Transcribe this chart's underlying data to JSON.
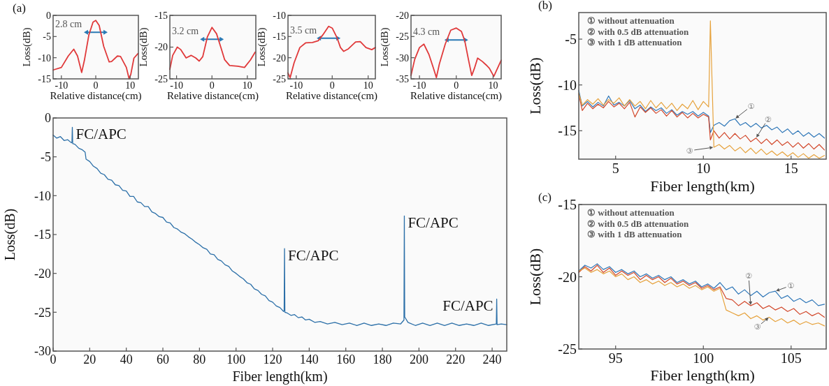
{
  "chart_data": [
    {
      "type": "line",
      "title": "(a)",
      "xlabel": "Relative distance(cm)",
      "ylabel": "Loss(dB)",
      "xlim": [
        -12.4,
        12.4
      ],
      "ylim": [
        -15,
        0
      ],
      "xticks": [
        -10,
        0,
        10
      ],
      "yticks": [
        0,
        -5,
        -10,
        -15
      ],
      "series": [
        {
          "color": "#e0393a",
          "x": [
            -12.4,
            -10,
            -8.0,
            -6.4,
            -5.3,
            -4.1,
            -3.3,
            -2.0,
            -0.8,
            0,
            1.0,
            2.3,
            3.9,
            4.6,
            6.3,
            7.2,
            8.9,
            9.7,
            10.2,
            11.1,
            12.3
          ],
          "values": [
            -12.9,
            -12.3,
            -9.6,
            -8.0,
            -9.6,
            -13.5,
            -10.6,
            -4.6,
            -1.6,
            -1.2,
            -2.4,
            -7.3,
            -11.0,
            -10.9,
            -9.6,
            -9.7,
            -12.3,
            -15,
            -13.9,
            -10.1,
            -9.0
          ]
        }
      ],
      "annotations": [
        "2.8 cm"
      ]
    },
    {
      "type": "line",
      "xlabel": "Relative distance(cm)",
      "ylabel": "Loss(dB)",
      "xlim": [
        -11.9,
        12.4
      ],
      "ylim": [
        -25,
        -15
      ],
      "xticks": [
        -10,
        0,
        10
      ],
      "yticks": [
        -15,
        -20,
        -25
      ],
      "series": [
        {
          "color": "#e0393a",
          "x": [
            -11.9,
            -11.1,
            -9.8,
            -8.8,
            -7.3,
            -5.9,
            -4.6,
            -3.6,
            -2.6,
            -1.3,
            0,
            1.3,
            2.6,
            3.6,
            5.0,
            7.3,
            9.2,
            10.9,
            12.2
          ],
          "values": [
            -23.5,
            -21.3,
            -20.0,
            -20.4,
            -21.7,
            -21.3,
            -21.7,
            -22.2,
            -21.5,
            -18.4,
            -16.9,
            -17.9,
            -20.2,
            -22.0,
            -22.9,
            -23.0,
            -23.2,
            -22.0,
            -20.8
          ]
        }
      ],
      "annotations": [
        "3.2 cm"
      ]
    },
    {
      "type": "line",
      "xlabel": "Relative distance(cm)",
      "ylabel": "Loss(dB)",
      "xlim": [
        -12.3,
        12.0
      ],
      "ylim": [
        -25,
        -10
      ],
      "xticks": [
        -10,
        0,
        10
      ],
      "yticks": [
        -10,
        -15,
        -20,
        -25
      ],
      "series": [
        {
          "color": "#e0393a",
          "x": [
            -12.3,
            -11.7,
            -10.6,
            -9.0,
            -7.4,
            -5.5,
            -3.9,
            -2.6,
            -1.0,
            0,
            1.3,
            2.3,
            3.2,
            4.5,
            6.5,
            7.8,
            9.4,
            11.0,
            12.0
          ],
          "values": [
            -23.6,
            -24.7,
            -21.2,
            -17.6,
            -16.5,
            -16.4,
            -16.0,
            -14.6,
            -12.6,
            -13.0,
            -15.2,
            -17.6,
            -18.5,
            -17.9,
            -16.3,
            -16.2,
            -17.6,
            -18.1,
            -17.6
          ]
        }
      ],
      "annotations": [
        "3.5 cm"
      ]
    },
    {
      "type": "line",
      "xlabel": "Relative distance(cm)",
      "ylabel": "Loss(dB)",
      "xlim": [
        -12.3,
        12.2
      ],
      "ylim": [
        -35,
        -20
      ],
      "xticks": [
        -10,
        0,
        10
      ],
      "yticks": [
        -20,
        -25,
        -30,
        -35
      ],
      "series": [
        {
          "color": "#e0393a",
          "x": [
            -12.3,
            -11.3,
            -10.0,
            -8.8,
            -7.4,
            -6.2,
            -5.4,
            -4.6,
            -3.0,
            -1.5,
            0,
            1.4,
            2.3,
            3.3,
            4.2,
            4.9,
            5.8,
            7.1,
            8.1,
            9.0,
            10.2,
            11.2,
            12.2
          ],
          "values": [
            -34.2,
            -30.4,
            -27.6,
            -26.8,
            -29.3,
            -32.5,
            -34.7,
            -31.5,
            -26.8,
            -23.5,
            -23.0,
            -23.8,
            -26.0,
            -30.4,
            -34.2,
            -32.6,
            -30.1,
            -30.9,
            -31.7,
            -32.5,
            -34.4,
            -32.5,
            -30.6
          ]
        }
      ],
      "annotations": [
        "4.3 cm"
      ]
    },
    {
      "type": "line",
      "xlabel": "Fiber length(km)",
      "ylabel": "Loss(dB)",
      "xlim": [
        0,
        248
      ],
      "ylim": [
        -30,
        0
      ],
      "xticks": [
        0,
        20,
        40,
        60,
        80,
        100,
        120,
        140,
        160,
        180,
        200,
        220,
        240
      ],
      "yticks": [
        0,
        -5,
        -10,
        -15,
        -20,
        -25,
        -30
      ],
      "series": [
        {
          "color": "#2b6fa8",
          "x": [
            0,
            2,
            4,
            6,
            8,
            10,
            10.3,
            10.5,
            10.7,
            12,
            14,
            16,
            17.5,
            18,
            20,
            22,
            24,
            26,
            28,
            30,
            32,
            34,
            36,
            38,
            40,
            42,
            44,
            46,
            48,
            50,
            52,
            54,
            56,
            58,
            60,
            62,
            64,
            66,
            68,
            70,
            72,
            74,
            76,
            78,
            80,
            82,
            84,
            86,
            88,
            90,
            92,
            94,
            96,
            98,
            100,
            102,
            104,
            106,
            108,
            110,
            112,
            114,
            116,
            118,
            120,
            122,
            124,
            126,
            126.3,
            126.5,
            126.7,
            128,
            130,
            132,
            134,
            136,
            138,
            140,
            143,
            146,
            150,
            154,
            158,
            162,
            166,
            170,
            174,
            178,
            182,
            186,
            190,
            191.8,
            192,
            192.2,
            194,
            198,
            202,
            206,
            210,
            214,
            218,
            222,
            226,
            230,
            234,
            238,
            242.3,
            242.5,
            242.7,
            245,
            248
          ],
          "values": [
            -2.2,
            -2.6,
            -2.4,
            -2.9,
            -2.8,
            -3.2,
            -3.1,
            -1.2,
            -3.3,
            -3.4,
            -3.9,
            -4.1,
            -4.4,
            -5.3,
            -5.6,
            -6.2,
            -6.5,
            -7.1,
            -7.3,
            -7.9,
            -8.0,
            -8.6,
            -8.7,
            -9.3,
            -9.4,
            -10.1,
            -10.1,
            -10.8,
            -10.9,
            -11.4,
            -11.4,
            -12.1,
            -12.3,
            -12.7,
            -12.8,
            -13.4,
            -13.5,
            -14.1,
            -14.3,
            -14.7,
            -14.9,
            -15.3,
            -15.6,
            -16.0,
            -16.3,
            -16.7,
            -16.9,
            -17.5,
            -17.6,
            -18.2,
            -18.4,
            -18.9,
            -19.1,
            -19.7,
            -20.0,
            -20.4,
            -20.7,
            -21.2,
            -21.4,
            -22.0,
            -22.2,
            -22.7,
            -22.9,
            -23.5,
            -23.7,
            -24.2,
            -24.4,
            -24.9,
            -24.8,
            -16.8,
            -25.0,
            -25.1,
            -25.4,
            -25.3,
            -25.7,
            -25.6,
            -26.0,
            -25.9,
            -26.3,
            -26.2,
            -26.5,
            -26.3,
            -26.6,
            -26.4,
            -26.7,
            -26.4,
            -26.7,
            -26.5,
            -26.7,
            -26.4,
            -26.5,
            -26.0,
            -12.6,
            -25.6,
            -26.3,
            -26.7,
            -26.4,
            -26.7,
            -26.4,
            -26.7,
            -26.4,
            -26.7,
            -26.5,
            -26.7,
            -26.4,
            -26.7,
            -26.5,
            -23.3,
            -26.6,
            -26.5,
            -26.6
          ]
        }
      ],
      "annotations": [
        {
          "text": "FC/APC",
          "x": 10.5,
          "y": -1.2
        },
        {
          "text": "FC/APC",
          "x": 126.5,
          "y": -16.8
        },
        {
          "text": "FC/APC",
          "x": 192,
          "y": -12.6
        },
        {
          "text": "FC/APC",
          "x": 242.5,
          "y": -23.3
        }
      ]
    },
    {
      "type": "line",
      "title": "(b)",
      "xlabel": "Fiber length(km)",
      "ylabel": "Loss(dB)",
      "xlim": [
        2.9,
        17.0
      ],
      "ylim": [
        -18.1,
        -2.1
      ],
      "xticks": [
        5,
        10,
        15
      ],
      "yticks": [
        -5,
        -10,
        -15
      ],
      "x": [
        2.9,
        3.1,
        3.4,
        3.7,
        4.0,
        4.3,
        4.6,
        4.9,
        5.2,
        5.5,
        5.8,
        6.1,
        6.4,
        6.7,
        7.0,
        7.3,
        7.6,
        7.9,
        8.2,
        8.5,
        8.8,
        9.1,
        9.4,
        9.7,
        10.0,
        10.3,
        10.4,
        10.6,
        10.9,
        11.2,
        11.5,
        11.8,
        12.1,
        12.4,
        12.7,
        13.0,
        13.3,
        13.6,
        13.9,
        14.2,
        14.5,
        14.8,
        15.1,
        15.4,
        15.7,
        16.0,
        16.3,
        16.6,
        16.9
      ],
      "series": [
        {
          "color": "#2f77b8",
          "values": [
            -10.6,
            -12.3,
            -11.8,
            -12.4,
            -11.9,
            -12.3,
            -11.2,
            -12.2,
            -11.9,
            -12.3,
            -11.7,
            -12.6,
            -12.2,
            -12.9,
            -12.4,
            -12.8,
            -12.5,
            -13.1,
            -12.7,
            -13.3,
            -12.9,
            -13.2,
            -12.9,
            -13.4,
            -13.0,
            -13.4,
            -15.2,
            -14.4,
            -14.1,
            -14.5,
            -13.9,
            -13.7,
            -14.4,
            -14.1,
            -14.6,
            -14.2,
            -14.7,
            -14.4,
            -14.9,
            -14.6,
            -15.2,
            -14.8,
            -15.4,
            -15.0,
            -15.6,
            -15.2,
            -15.7,
            -15.3,
            -15.8
          ]
        },
        {
          "color": "#d2472a",
          "values": [
            -11.0,
            -12.8,
            -12.0,
            -12.6,
            -12.1,
            -12.5,
            -11.8,
            -12.4,
            -12.0,
            -12.6,
            -11.9,
            -13.5,
            -12.4,
            -13.0,
            -12.5,
            -13.1,
            -12.7,
            -13.4,
            -12.8,
            -13.5,
            -13.0,
            -13.6,
            -13.1,
            -13.6,
            -13.2,
            -13.5,
            -16.0,
            -15.0,
            -15.8,
            -15.2,
            -15.9,
            -15.3,
            -15.9,
            -15.5,
            -16.2,
            -15.8,
            -16.4,
            -15.9,
            -16.5,
            -16.0,
            -16.6,
            -16.2,
            -16.8,
            -16.3,
            -16.9,
            -16.4,
            -17.0,
            -16.5,
            -17.1
          ]
        },
        {
          "color": "#e6a23c",
          "values": [
            -10.9,
            -12.2,
            -11.6,
            -12.1,
            -11.5,
            -12.2,
            -11.6,
            -12.0,
            -11.4,
            -12.3,
            -11.6,
            -12.3,
            -11.8,
            -12.6,
            -11.7,
            -12.5,
            -11.9,
            -12.6,
            -12.0,
            -12.8,
            -12.1,
            -12.6,
            -11.7,
            -12.7,
            -11.8,
            -12.4,
            -3.0,
            -16.8,
            -16.5,
            -17.0,
            -16.6,
            -17.2,
            -16.8,
            -17.4,
            -16.9,
            -17.5,
            -17.0,
            -17.6,
            -17.2,
            -17.7,
            -17.3,
            -17.8,
            -17.4,
            -17.9,
            -17.5,
            -18.0,
            -17.6,
            -18.0,
            -17.7
          ]
        }
      ],
      "annotations": [
        "① without attenuation",
        "② with 0.5 dB attenuation",
        "③ with 1 dB attenuation",
        {
          "text": "①",
          "x": 11.8,
          "y": -13.7
        },
        {
          "text": "②",
          "x": 13.0,
          "y": -15.8
        },
        {
          "text": "③",
          "x": 10.6,
          "y": -16.8
        }
      ]
    },
    {
      "type": "line",
      "title": "(c)",
      "xlabel": "Fiber length(km)",
      "ylabel": "Loss(dB)",
      "xlim": [
        92.9,
        107.0
      ],
      "ylim": [
        -25,
        -15
      ],
      "xticks": [
        95,
        100,
        105
      ],
      "yticks": [
        -15,
        -20,
        -25
      ],
      "x": [
        92.9,
        93.25,
        93.6,
        93.95,
        94.3,
        94.65,
        95.0,
        95.35,
        95.7,
        96.05,
        96.4,
        96.75,
        97.1,
        97.45,
        97.8,
        98.15,
        98.5,
        98.85,
        99.2,
        99.55,
        99.9,
        100.25,
        100.6,
        100.95,
        101.3,
        101.65,
        102.0,
        102.35,
        102.7,
        103.05,
        103.4,
        103.75,
        104.1,
        104.45,
        104.8,
        105.15,
        105.5,
        105.85,
        106.2,
        106.55,
        106.9
      ],
      "series": [
        {
          "color": "#2f77b8",
          "values": [
            -19.6,
            -19.2,
            -19.4,
            -19.1,
            -19.5,
            -19.3,
            -19.7,
            -19.5,
            -19.8,
            -19.6,
            -20.0,
            -19.8,
            -20.1,
            -19.9,
            -20.2,
            -20.0,
            -20.4,
            -20.2,
            -20.5,
            -20.3,
            -20.7,
            -20.5,
            -20.8,
            -20.4,
            -20.9,
            -20.7,
            -21.2,
            -20.9,
            -21.3,
            -21.0,
            -21.4,
            -21.1,
            -21.0,
            -21.5,
            -21.3,
            -21.7,
            -21.5,
            -21.8,
            -21.6,
            -22.0,
            -21.9
          ]
        },
        {
          "color": "#d2472a",
          "values": [
            -19.7,
            -19.3,
            -19.6,
            -19.2,
            -19.7,
            -19.4,
            -19.9,
            -19.6,
            -19.9,
            -19.7,
            -20.2,
            -19.9,
            -20.2,
            -20.0,
            -20.4,
            -20.1,
            -20.5,
            -20.3,
            -20.6,
            -20.4,
            -20.8,
            -20.6,
            -20.9,
            -20.7,
            -21.5,
            -21.6,
            -22.0,
            -21.7,
            -22.0,
            -21.8,
            -22.2,
            -22.0,
            -22.3,
            -22.1,
            -22.4,
            -22.2,
            -22.6,
            -22.4,
            -22.7,
            -22.5,
            -22.8
          ]
        },
        {
          "color": "#e6a23c",
          "values": [
            -19.6,
            -19.4,
            -19.7,
            -19.5,
            -19.8,
            -19.6,
            -20.0,
            -19.8,
            -20.2,
            -20.0,
            -20.4,
            -20.2,
            -20.5,
            -20.3,
            -20.6,
            -20.4,
            -20.7,
            -20.5,
            -20.8,
            -20.6,
            -20.9,
            -20.7,
            -21.0,
            -20.8,
            -22.3,
            -22.5,
            -22.7,
            -22.5,
            -22.9,
            -22.7,
            -23.0,
            -22.8,
            -23.1,
            -22.9,
            -23.2,
            -23.0,
            -23.3,
            -23.1,
            -23.3,
            -23.2,
            -23.4
          ]
        }
      ],
      "annotations": [
        "① without attenuation",
        "② with 0.5 dB attenuation",
        "③ with 1 dB attenuation",
        {
          "text": "①",
          "x": 104.1,
          "y": -21.0
        },
        {
          "text": "②",
          "x": 102.7,
          "y": -22.0
        },
        {
          "text": "③",
          "x": 103.75,
          "y": -22.8
        }
      ]
    }
  ]
}
